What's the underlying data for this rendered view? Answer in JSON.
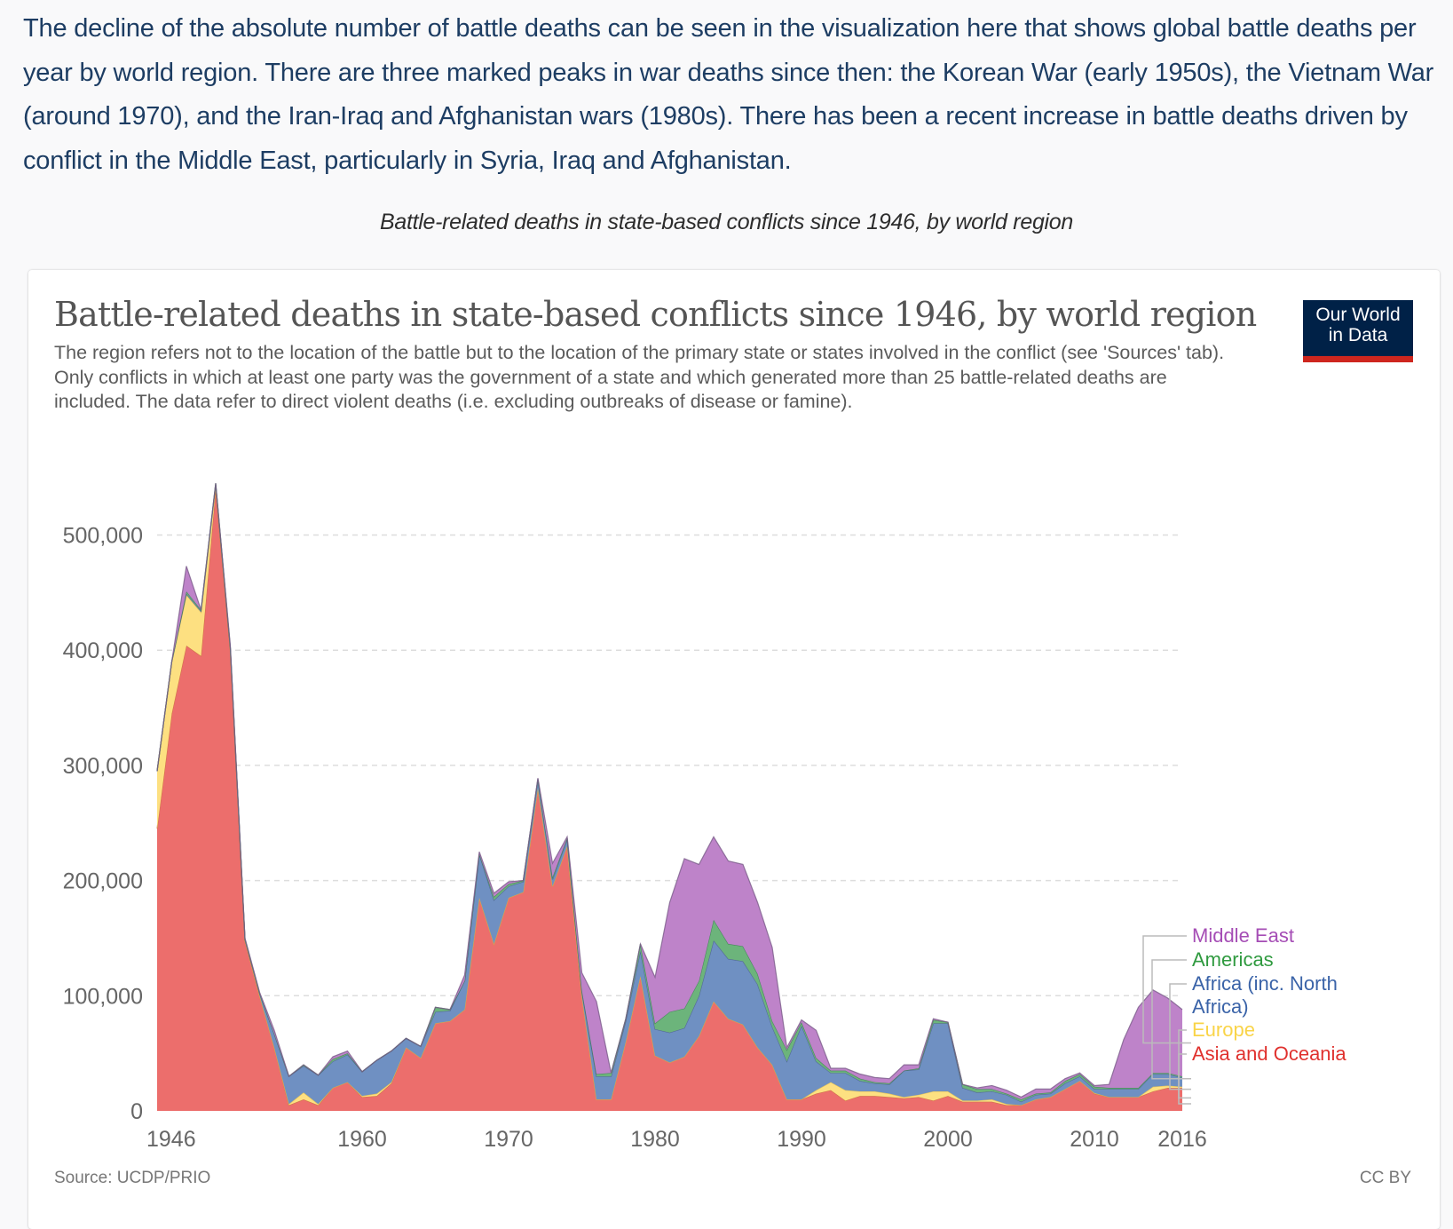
{
  "article": {
    "paragraph": "The decline of the absolute number of battle deaths can be seen in the visualization here that shows global battle deaths per year by world region. There are three marked peaks in war deaths since then: the Korean War (early 1950s), the Vietnam War (around 1970), and the Iran-Iraq and Afghanistan wars (1980s). There has been a recent increase in battle deaths driven by conflict in the Middle East, particularly in Syria, Iraq and Afghanistan.",
    "figure_caption": "Battle-related deaths in state-based conflicts since 1946, by world region"
  },
  "card": {
    "logo_line1": "Our World",
    "logo_line2": "in Data",
    "source": "Source: UCDP/PRIO",
    "license": "CC BY"
  },
  "colors": {
    "asia": "#ec6e6c",
    "europe": "#fde081",
    "africa": "#6f90c2",
    "americas": "#6cb47b",
    "middle_east": "#be83c9",
    "asia_label": "#e0312e",
    "europe_label": "#f9d448",
    "africa_label": "#3a63a8",
    "americas_label": "#2f9a3f",
    "middle_east_label": "#a54db5"
  },
  "chart_data": {
    "type": "area",
    "stacked": true,
    "title": "Battle-related deaths in state-based conflicts since 1946, by world region",
    "subtitle": "The region refers not to the location of the battle but to the location of the primary state or states involved in the conflict (see 'Sources' tab). Only conflicts in which at least one party was the government of a state and which generated more than 25 battle-related deaths are included. The data refer to direct violent deaths (i.e. excluding outbreaks of disease or famine).",
    "xlabel": "",
    "ylabel": "",
    "xlim": [
      1946,
      2016
    ],
    "ylim": [
      0,
      550000
    ],
    "x_ticks": [
      1946,
      1960,
      1970,
      1980,
      1990,
      2000,
      2010,
      2016
    ],
    "y_ticks": [
      0,
      100000,
      200000,
      300000,
      400000,
      500000
    ],
    "y_tick_labels": [
      "0",
      "100,000",
      "200,000",
      "300,000",
      "400,000",
      "500,000"
    ],
    "grid": "horizontal-dashed",
    "legend_position": "right",
    "x": [
      1946,
      1947,
      1948,
      1949,
      1950,
      1951,
      1952,
      1953,
      1954,
      1955,
      1956,
      1957,
      1958,
      1959,
      1960,
      1961,
      1962,
      1963,
      1964,
      1965,
      1966,
      1967,
      1968,
      1969,
      1970,
      1971,
      1972,
      1973,
      1974,
      1975,
      1976,
      1977,
      1978,
      1979,
      1980,
      1981,
      1982,
      1983,
      1984,
      1985,
      1986,
      1987,
      1988,
      1989,
      1990,
      1991,
      1992,
      1993,
      1994,
      1995,
      1996,
      1997,
      1998,
      1999,
      2000,
      2001,
      2002,
      2003,
      2004,
      2005,
      2006,
      2007,
      2008,
      2009,
      2010,
      2011,
      2012,
      2013,
      2014,
      2015,
      2016
    ],
    "series": [
      {
        "name": "Asia and Oceania",
        "key": "asia",
        "values": [
          245000,
          345000,
          404000,
          395000,
          540000,
          400000,
          148000,
          100000,
          55000,
          5000,
          10000,
          5000,
          20000,
          25000,
          12000,
          13000,
          24000,
          55000,
          46000,
          76000,
          78000,
          88000,
          185000,
          145000,
          185000,
          190000,
          280000,
          195000,
          230000,
          100000,
          10000,
          10000,
          60000,
          117000,
          48000,
          42000,
          47000,
          65000,
          95000,
          80000,
          75000,
          55000,
          40000,
          10000,
          10000,
          15000,
          18000,
          9000,
          13000,
          13000,
          12000,
          11000,
          12000,
          9000,
          13000,
          8000,
          8000,
          8000,
          5000,
          5000,
          10000,
          12000,
          19000,
          26000,
          15000,
          12000,
          12000,
          12000,
          17000,
          20000,
          20000
        ]
      },
      {
        "name": "Europe",
        "key": "europe",
        "values": [
          50000,
          45000,
          44000,
          38000,
          3000,
          1000,
          0,
          0,
          0,
          1000,
          6000,
          1000,
          0,
          0,
          1000,
          2000,
          1000,
          0,
          0,
          0,
          0,
          0,
          0,
          0,
          0,
          0,
          0,
          0,
          0,
          0,
          0,
          0,
          0,
          0,
          0,
          0,
          0,
          0,
          0,
          0,
          0,
          0,
          0,
          0,
          0,
          3000,
          7000,
          9000,
          4000,
          4000,
          3000,
          1000,
          2000,
          8000,
          4000,
          1000,
          1000,
          2000,
          1000,
          0,
          0,
          0,
          0,
          0,
          500,
          0,
          0,
          0,
          4000,
          2000,
          1000
        ]
      },
      {
        "name": "Africa (inc. North Africa)",
        "key": "africa",
        "values": [
          0,
          0,
          1000,
          1000,
          1000,
          1000,
          1000,
          2000,
          12000,
          24000,
          23000,
          25000,
          23000,
          24000,
          21000,
          29000,
          27000,
          8000,
          10000,
          10000,
          9000,
          25000,
          38000,
          38000,
          10000,
          9000,
          8000,
          6000,
          6000,
          4000,
          20000,
          20000,
          18000,
          22000,
          23000,
          26000,
          25000,
          35000,
          53000,
          52000,
          55000,
          55000,
          33000,
          33000,
          64000,
          25000,
          8000,
          15000,
          9000,
          7000,
          8000,
          23000,
          22000,
          59000,
          59000,
          11000,
          7000,
          7000,
          8000,
          3000,
          4000,
          3000,
          5000,
          4000,
          3500,
          7000,
          7000,
          7000,
          11000,
          10000,
          8000
        ]
      },
      {
        "name": "Americas",
        "key": "americas",
        "values": [
          0,
          0,
          2000,
          1000,
          1000,
          0,
          0,
          0,
          0,
          0,
          1000,
          0,
          2000,
          1000,
          0,
          0,
          0,
          0,
          0,
          4000,
          1000,
          0,
          0,
          3000,
          2000,
          1000,
          0,
          2000,
          1000,
          1000,
          2000,
          3000,
          2000,
          6000,
          5000,
          18000,
          17000,
          13000,
          18000,
          13000,
          13000,
          9000,
          5000,
          10000,
          3000,
          3000,
          2000,
          2000,
          2000,
          1000,
          1000,
          0,
          1000,
          3000,
          1000,
          3000,
          3000,
          2000,
          1000,
          2000,
          1000,
          1000,
          2000,
          2000,
          2000,
          1000,
          1000,
          1000,
          1000,
          1000,
          1000
        ]
      },
      {
        "name": "Middle East",
        "key": "middle_east",
        "values": [
          0,
          0,
          22000,
          0,
          0,
          2000,
          1000,
          1000,
          3000,
          0,
          0,
          0,
          2000,
          2000,
          0,
          0,
          0,
          0,
          0,
          0,
          0,
          5000,
          2000,
          3000,
          2000,
          0,
          1000,
          12000,
          1000,
          15000,
          63000,
          0,
          0,
          0,
          40000,
          95000,
          130000,
          101000,
          72000,
          72000,
          71000,
          62000,
          64000,
          2000,
          2000,
          24000,
          2000,
          2000,
          4000,
          4000,
          4000,
          5000,
          3000,
          1000,
          0,
          0,
          1000,
          3000,
          3000,
          2000,
          4000,
          3000,
          2000,
          1000,
          1000,
          3000,
          42000,
          70000,
          72000,
          65000,
          58000
        ]
      }
    ]
  }
}
